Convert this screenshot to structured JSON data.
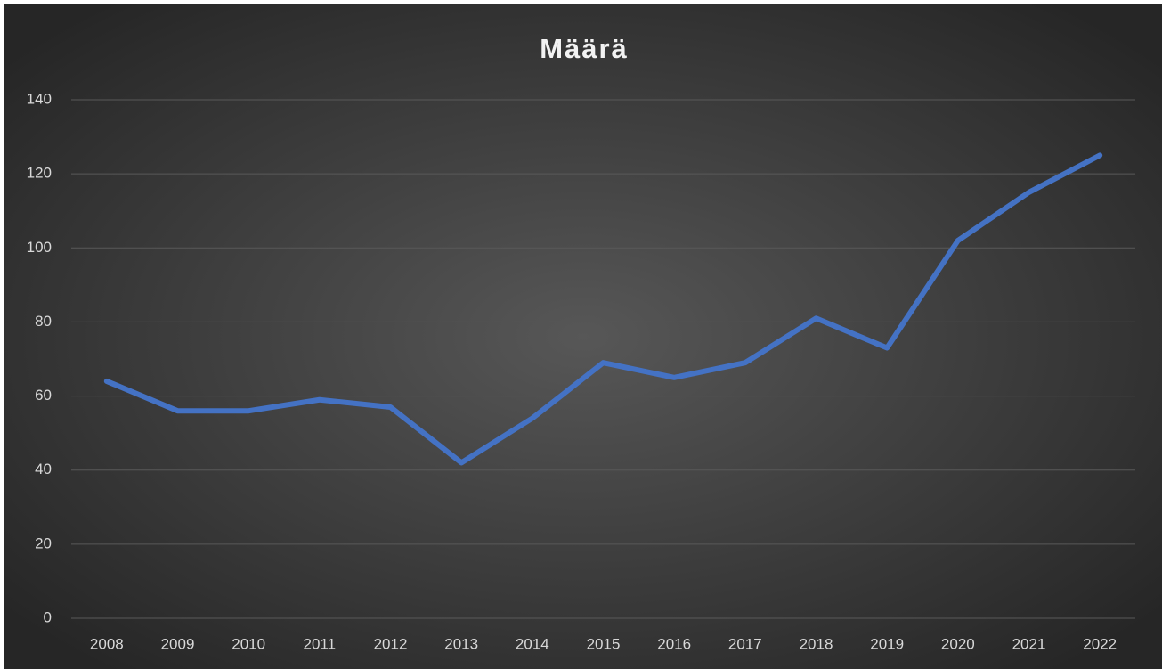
{
  "chart_data": {
    "type": "line",
    "title": "Määrä",
    "categories": [
      "2008",
      "2009",
      "2010",
      "2011",
      "2012",
      "2013",
      "2014",
      "2015",
      "2016",
      "2017",
      "2018",
      "2019",
      "2020",
      "2021",
      "2022"
    ],
    "values": [
      64,
      56,
      56,
      59,
      57,
      42,
      54,
      69,
      65,
      69,
      81,
      73,
      102,
      115,
      125
    ],
    "color": "#4472c4",
    "ylim": [
      0,
      140
    ],
    "yticks": [
      0,
      20,
      40,
      60,
      80,
      100,
      120,
      140
    ],
    "grid": true
  }
}
